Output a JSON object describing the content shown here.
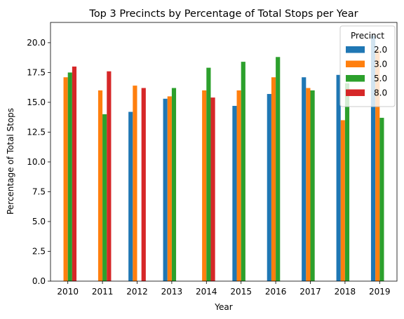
{
  "chart_data": {
    "type": "bar",
    "title": "Top 3 Precincts by Percentage of Total Stops per Year",
    "xlabel": "Year",
    "ylabel": "Percentage of Total Stops",
    "ylim": [
      0,
      21.7
    ],
    "yticks": [
      "0.0",
      "2.5",
      "5.0",
      "7.5",
      "10.0",
      "12.5",
      "15.0",
      "17.5",
      "20.0"
    ],
    "grid": false,
    "legend_title": "Precinct",
    "legend_position": "top-right",
    "categories": [
      "2010",
      "2011",
      "2012",
      "2013",
      "2014",
      "2015",
      "2016",
      "2017",
      "2018",
      "2019"
    ],
    "series": [
      {
        "name": "2.0",
        "color": "#1f77b4",
        "values": [
          null,
          null,
          14.2,
          15.3,
          null,
          14.7,
          15.7,
          17.1,
          17.3,
          20.6
        ]
      },
      {
        "name": "3.0",
        "color": "#ff7f0e",
        "values": [
          17.1,
          16.0,
          16.4,
          15.5,
          16.0,
          16.0,
          17.1,
          16.2,
          13.5,
          19.4
        ]
      },
      {
        "name": "5.0",
        "color": "#2ca02c",
        "values": [
          17.5,
          14.0,
          null,
          16.2,
          17.9,
          18.4,
          18.8,
          16.0,
          16.6,
          13.7
        ]
      },
      {
        "name": "8.0",
        "color": "#d62728",
        "values": [
          18.0,
          17.6,
          16.2,
          null,
          15.4,
          null,
          null,
          null,
          null,
          null
        ]
      }
    ]
  }
}
